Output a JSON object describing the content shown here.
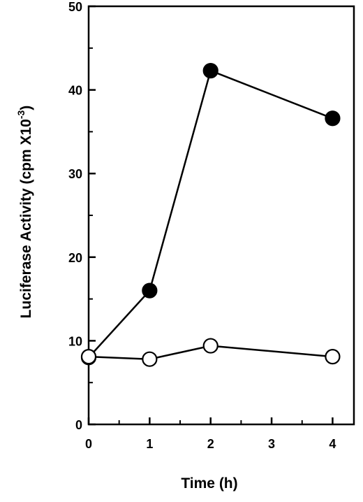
{
  "chart_data": {
    "type": "line",
    "title": "",
    "xlabel": "Time (h)",
    "ylabel_main": "Luciferase Activity (cpm X10",
    "ylabel_exponent": "-3",
    "ylabel_close": ")",
    "xlim": [
      0,
      4.35
    ],
    "ylim": [
      0,
      50
    ],
    "x_ticks": [
      0,
      1,
      2,
      3,
      4
    ],
    "x_minor_ticks": [
      0.5,
      1.5,
      2.5,
      3.5
    ],
    "y_ticks": [
      0,
      10,
      20,
      30,
      40,
      50
    ],
    "y_minor_ticks": [
      5,
      15,
      25,
      35,
      45
    ],
    "grid": false,
    "legend": "none",
    "series": [
      {
        "marker": "filled-circle",
        "color": "#000000",
        "x": [
          0,
          1,
          2,
          4
        ],
        "y": [
          8,
          16,
          42.3,
          36.6
        ]
      },
      {
        "marker": "open-circle",
        "color": "#000000",
        "x": [
          0,
          1,
          2,
          4
        ],
        "y": [
          8.1,
          7.8,
          9.4,
          8.1
        ]
      }
    ]
  }
}
